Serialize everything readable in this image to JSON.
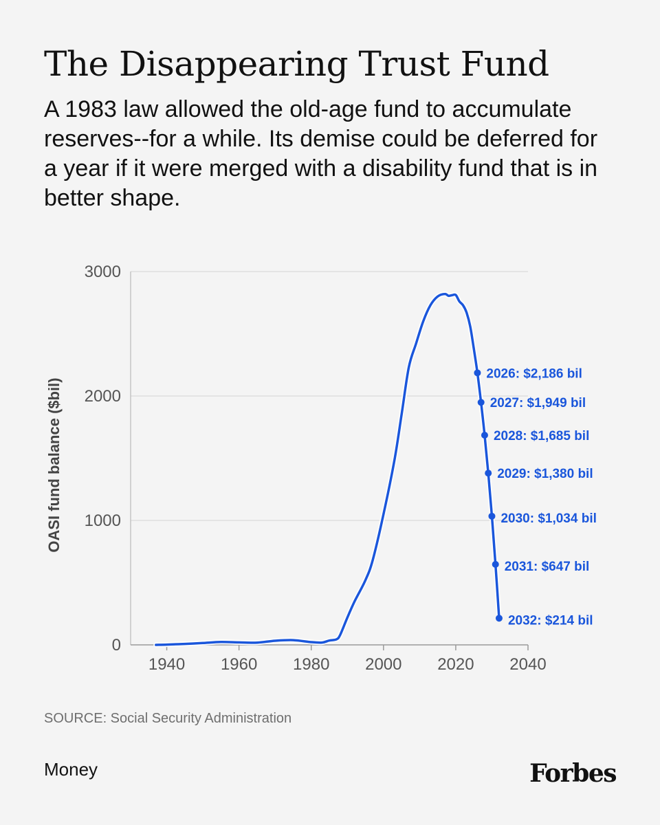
{
  "header": {
    "title": "The Disappearing Trust Fund",
    "subtitle": "A 1983 law allowed the old-age fund to accumulate reserves--for a while. Its demise could be deferred for a year if it were merged with a disability fund that is in better shape."
  },
  "footer": {
    "source": "SOURCE: Social Security Administration",
    "section": "Money",
    "brand": "Forbes"
  },
  "colors": {
    "line": "#1a56db",
    "grid": "#d4d4d4",
    "background": "#f4f4f4"
  },
  "chart_data": {
    "type": "line",
    "title": "The Disappearing Trust Fund",
    "xlabel": "",
    "ylabel": "OASI fund balance ($bil)",
    "xlim": [
      1930,
      2040
    ],
    "ylim": [
      0,
      3000
    ],
    "xticks": [
      1940,
      1960,
      1980,
      2000,
      2020,
      2040
    ],
    "yticks": [
      0,
      1000,
      2000,
      3000
    ],
    "grid": true,
    "series": [
      {
        "name": "OASI fund balance",
        "x": [
          1937,
          1940,
          1945,
          1950,
          1955,
          1960,
          1965,
          1970,
          1975,
          1980,
          1983,
          1985,
          1987,
          1988,
          1990,
          1992,
          1995,
          1997,
          2000,
          2003,
          2005,
          2007,
          2009,
          2011,
          2013,
          2015,
          2017,
          2018,
          2019,
          2020,
          2021,
          2022,
          2023,
          2024,
          2025,
          2026,
          2027,
          2028,
          2029,
          2030,
          2031,
          2032
        ],
        "values": [
          0,
          2,
          8,
          15,
          23,
          20,
          18,
          33,
          38,
          22,
          19,
          35,
          45,
          80,
          220,
          350,
          520,
          680,
          1050,
          1480,
          1850,
          2230,
          2420,
          2600,
          2730,
          2800,
          2820,
          2805,
          2810,
          2812,
          2760,
          2730,
          2670,
          2560,
          2380,
          2186,
          1949,
          1685,
          1380,
          1034,
          647,
          214
        ]
      }
    ],
    "annotations": [
      {
        "x": 2026,
        "y": 2186,
        "label": "2026: $2,186 bil"
      },
      {
        "x": 2027,
        "y": 1949,
        "label": "2027: $1,949 bil"
      },
      {
        "x": 2028,
        "y": 1685,
        "label": "2028: $1,685 bil"
      },
      {
        "x": 2029,
        "y": 1380,
        "label": "2029: $1,380 bil"
      },
      {
        "x": 2030,
        "y": 1034,
        "label": "2030: $1,034 bil"
      },
      {
        "x": 2031,
        "y": 647,
        "label": "2031: $647 bil"
      },
      {
        "x": 2032,
        "y": 214,
        "label": "2032: $214 bil"
      }
    ]
  }
}
